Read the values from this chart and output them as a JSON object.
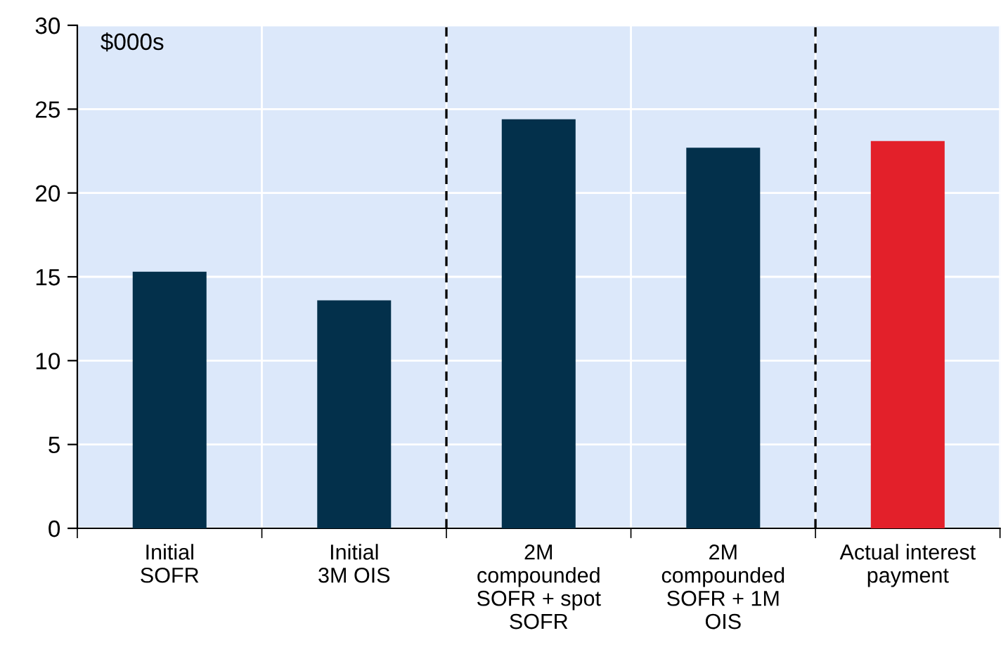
{
  "chart_data": {
    "type": "bar",
    "categories": [
      "Initial\nSOFR",
      "Initial\n3M OIS",
      "2M\ncompounded\nSOFR + spot\nSOFR",
      "2M\ncompounded\nSOFR + 1M\nOIS",
      "Actual interest\npayment"
    ],
    "values": [
      15.3,
      13.6,
      24.4,
      22.7,
      23.1
    ],
    "colors": [
      "#03304b",
      "#03304b",
      "#03304b",
      "#03304b",
      "#e3202a"
    ],
    "ylim": [
      0,
      30
    ],
    "yticks": [
      0,
      5,
      10,
      15,
      20,
      25,
      30
    ],
    "grid": true,
    "annotations": [
      "$000s"
    ]
  }
}
